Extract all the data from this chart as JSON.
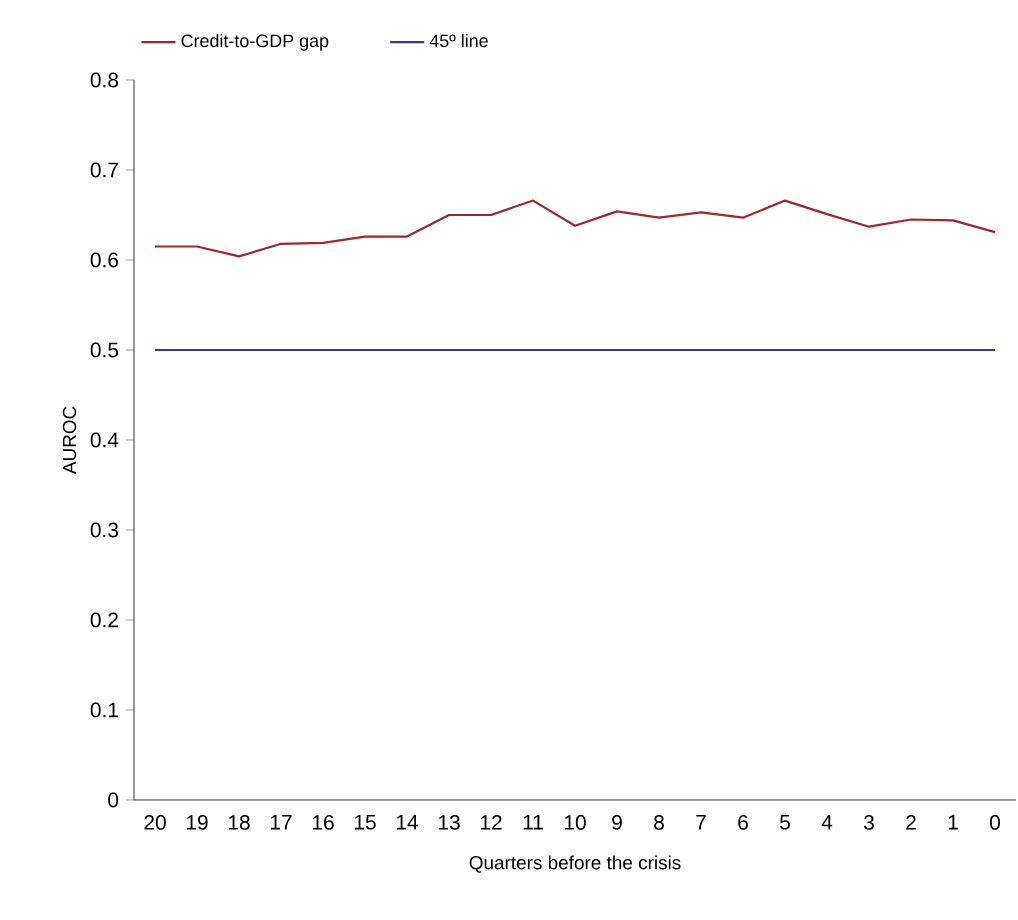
{
  "chart_data": {
    "type": "line",
    "xlabel": "Quarters before the crisis",
    "ylabel": "AUROC",
    "categories": [
      "20",
      "19",
      "18",
      "17",
      "16",
      "15",
      "14",
      "13",
      "12",
      "11",
      "10",
      "9",
      "8",
      "7",
      "6",
      "5",
      "4",
      "3",
      "2",
      "1",
      "0"
    ],
    "series": [
      {
        "name": "Credit-to-GDP gap",
        "color": "#a0282c",
        "values": [
          0.615,
          0.615,
          0.604,
          0.618,
          0.619,
          0.626,
          0.626,
          0.65,
          0.65,
          0.666,
          0.638,
          0.654,
          0.647,
          0.653,
          0.647,
          0.666,
          0.651,
          0.637,
          0.645,
          0.644,
          0.631
        ]
      },
      {
        "name": "45º line",
        "color": "#2e3a9e",
        "values": [
          0.5,
          0.5,
          0.5,
          0.5,
          0.5,
          0.5,
          0.5,
          0.5,
          0.5,
          0.5,
          0.5,
          0.5,
          0.5,
          0.5,
          0.5,
          0.5,
          0.5,
          0.5,
          0.5,
          0.5,
          0.5
        ]
      }
    ],
    "ylim": [
      0,
      0.8
    ],
    "yticks": [
      0,
      0.1,
      0.2,
      0.3,
      0.4,
      0.5,
      0.6,
      0.7,
      0.8
    ],
    "grid": false,
    "legend": "top left",
    "marker": "none",
    "line_style": "solid"
  }
}
